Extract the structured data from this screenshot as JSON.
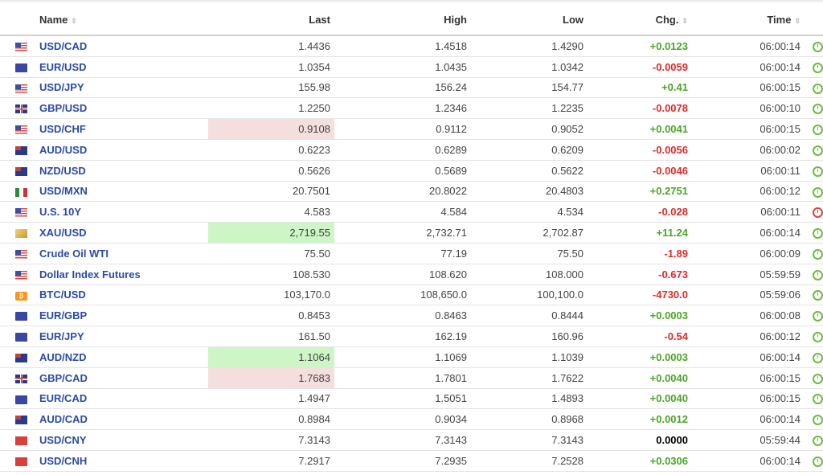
{
  "headers": {
    "name": "Name",
    "last": "Last",
    "high": "High",
    "low": "Low",
    "chg": "Chg.",
    "time": "Time"
  },
  "colors": {
    "up": "#4aa526",
    "down": "#e02a2a",
    "flash_up": "#cdf5c5",
    "flash_down": "#f4dede"
  },
  "rows": [
    {
      "flag": "us",
      "name": "USD/CAD",
      "last": "1.4436",
      "high": "1.4518",
      "low": "1.4290",
      "chg": "+0.0123",
      "dir": "up",
      "time": "06:00:14",
      "hl": "",
      "clock": "ok"
    },
    {
      "flag": "eu",
      "name": "EUR/USD",
      "last": "1.0354",
      "high": "1.0435",
      "low": "1.0342",
      "chg": "-0.0059",
      "dir": "dn",
      "time": "06:00:14",
      "hl": "",
      "clock": "ok"
    },
    {
      "flag": "us",
      "name": "USD/JPY",
      "last": "155.98",
      "high": "156.24",
      "low": "154.77",
      "chg": "+0.41",
      "dir": "up",
      "time": "06:00:15",
      "hl": "",
      "clock": "ok"
    },
    {
      "flag": "gb",
      "name": "GBP/USD",
      "last": "1.2250",
      "high": "1.2346",
      "low": "1.2235",
      "chg": "-0.0078",
      "dir": "dn",
      "time": "06:00:10",
      "hl": "",
      "clock": "ok"
    },
    {
      "flag": "us",
      "name": "USD/CHF",
      "last": "0.9108",
      "high": "0.9112",
      "low": "0.9052",
      "chg": "+0.0041",
      "dir": "up",
      "time": "06:00:15",
      "hl": "dn",
      "clock": "ok"
    },
    {
      "flag": "au",
      "name": "AUD/USD",
      "last": "0.6223",
      "high": "0.6289",
      "low": "0.6209",
      "chg": "-0.0056",
      "dir": "dn",
      "time": "06:00:02",
      "hl": "",
      "clock": "ok"
    },
    {
      "flag": "au",
      "name": "NZD/USD",
      "last": "0.5626",
      "high": "0.5689",
      "low": "0.5622",
      "chg": "-0.0046",
      "dir": "dn",
      "time": "06:00:11",
      "hl": "",
      "clock": "ok"
    },
    {
      "flag": "mx",
      "name": "USD/MXN",
      "last": "20.7501",
      "high": "20.8022",
      "low": "20.4803",
      "chg": "+0.2751",
      "dir": "up",
      "time": "06:00:12",
      "hl": "",
      "clock": "ok"
    },
    {
      "flag": "us",
      "name": "U.S. 10Y",
      "last": "4.583",
      "high": "4.584",
      "low": "4.534",
      "chg": "-0.028",
      "dir": "dn",
      "time": "06:00:11",
      "hl": "",
      "clock": "late"
    },
    {
      "flag": "xau",
      "name": "XAU/USD",
      "last": "2,719.55",
      "high": "2,732.71",
      "low": "2,702.87",
      "chg": "+11.24",
      "dir": "up",
      "time": "06:00:14",
      "hl": "up",
      "clock": "ok"
    },
    {
      "flag": "us",
      "name": "Crude Oil WTI",
      "last": "75.50",
      "high": "77.19",
      "low": "75.50",
      "chg": "-1.89",
      "dir": "dn",
      "time": "06:00:09",
      "hl": "",
      "clock": "ok"
    },
    {
      "flag": "us",
      "name": "Dollar Index Futures",
      "last": "108.530",
      "high": "108.620",
      "low": "108.000",
      "chg": "-0.673",
      "dir": "dn",
      "time": "05:59:59",
      "hl": "",
      "clock": "ok"
    },
    {
      "flag": "btc",
      "name": "BTC/USD",
      "last": "103,170.0",
      "high": "108,650.0",
      "low": "100,100.0",
      "chg": "-4730.0",
      "dir": "dn",
      "time": "05:59:06",
      "hl": "",
      "clock": "ok"
    },
    {
      "flag": "eu",
      "name": "EUR/GBP",
      "last": "0.8453",
      "high": "0.8463",
      "low": "0.8444",
      "chg": "+0.0003",
      "dir": "up",
      "time": "06:00:08",
      "hl": "",
      "clock": "ok"
    },
    {
      "flag": "eu",
      "name": "EUR/JPY",
      "last": "161.50",
      "high": "162.19",
      "low": "160.96",
      "chg": "-0.54",
      "dir": "dn",
      "time": "06:00:12",
      "hl": "",
      "clock": "ok"
    },
    {
      "flag": "au",
      "name": "AUD/NZD",
      "last": "1.1064",
      "high": "1.1069",
      "low": "1.1039",
      "chg": "+0.0003",
      "dir": "up",
      "time": "06:00:14",
      "hl": "up",
      "clock": "ok"
    },
    {
      "flag": "gb",
      "name": "GBP/CAD",
      "last": "1.7683",
      "high": "1.7801",
      "low": "1.7622",
      "chg": "+0.0040",
      "dir": "up",
      "time": "06:00:15",
      "hl": "dn",
      "clock": "ok"
    },
    {
      "flag": "eu",
      "name": "EUR/CAD",
      "last": "1.4947",
      "high": "1.5051",
      "low": "1.4893",
      "chg": "+0.0040",
      "dir": "up",
      "time": "06:00:15",
      "hl": "",
      "clock": "ok"
    },
    {
      "flag": "au",
      "name": "AUD/CAD",
      "last": "0.8984",
      "high": "0.9034",
      "low": "0.8968",
      "chg": "+0.0012",
      "dir": "up",
      "time": "06:00:14",
      "hl": "",
      "clock": "ok"
    },
    {
      "flag": "cn",
      "name": "USD/CNY",
      "last": "7.3143",
      "high": "7.3143",
      "low": "7.3143",
      "chg": "0.0000",
      "dir": "nc",
      "time": "05:59:44",
      "hl": "",
      "clock": "ok"
    },
    {
      "flag": "cn",
      "name": "USD/CNH",
      "last": "7.2917",
      "high": "7.2935",
      "low": "7.2528",
      "chg": "+0.0306",
      "dir": "up",
      "time": "06:00:14",
      "hl": "",
      "clock": "ok"
    }
  ]
}
